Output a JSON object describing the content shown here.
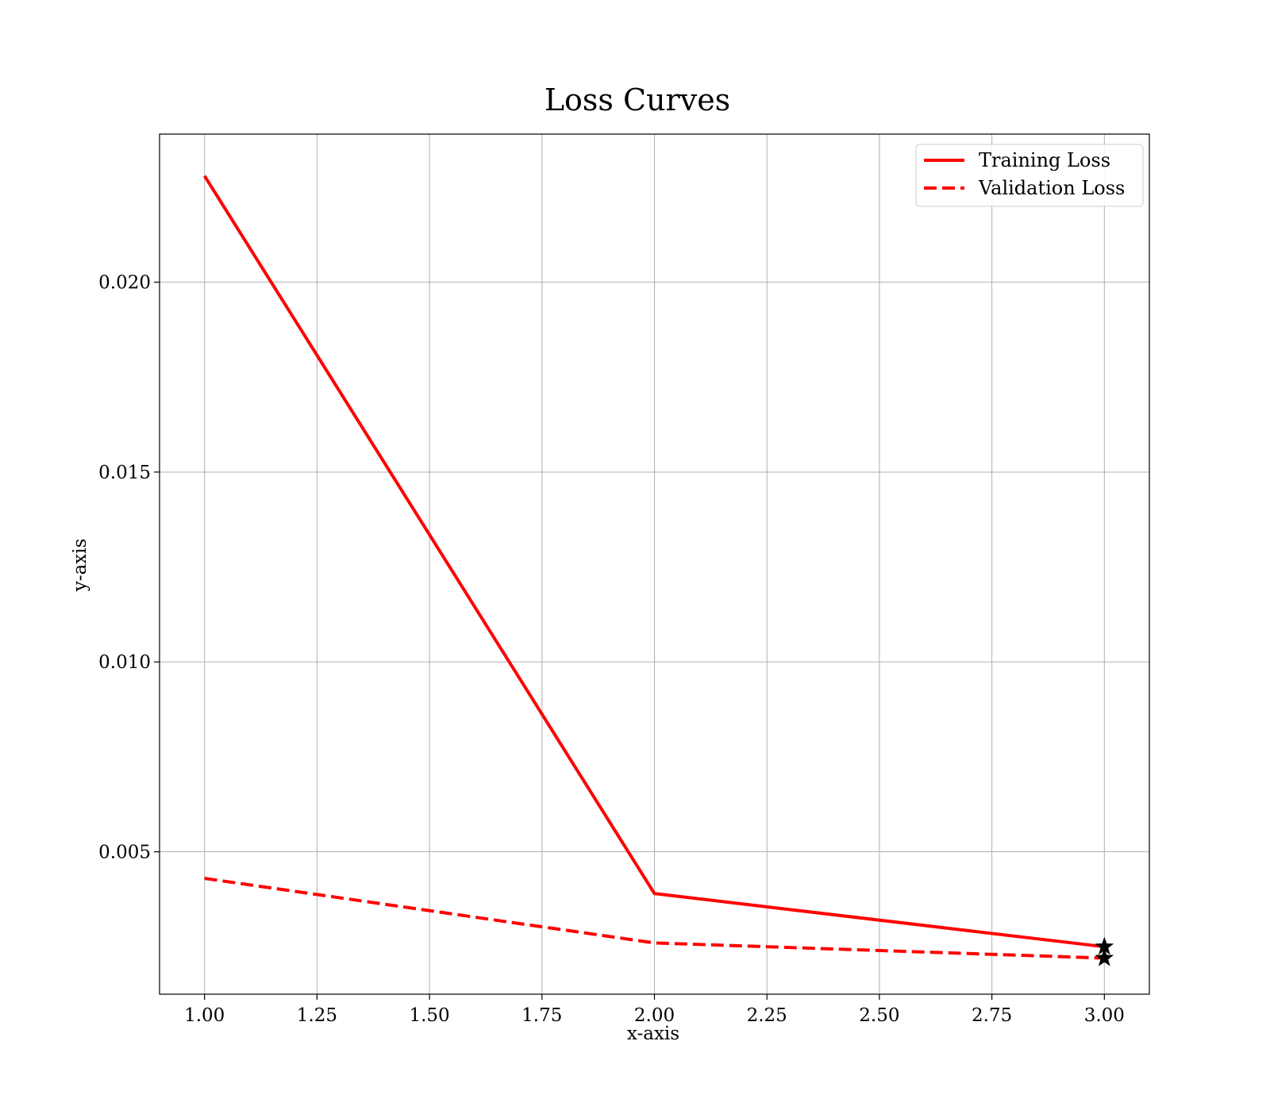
{
  "chart_data": {
    "type": "line",
    "title": "Loss Curves",
    "xlabel": "x-axis",
    "ylabel": "y-axis",
    "xlim": [
      0.9,
      3.1
    ],
    "ylim": [
      0.00125,
      0.0239
    ],
    "xticks": [
      1.0,
      1.25,
      1.5,
      1.75,
      2.0,
      2.25,
      2.5,
      2.75,
      3.0
    ],
    "xtick_labels": [
      "1.00",
      "1.25",
      "1.50",
      "1.75",
      "2.00",
      "2.25",
      "2.50",
      "2.75",
      "3.00"
    ],
    "yticks": [
      0.005,
      0.01,
      0.015,
      0.02
    ],
    "ytick_labels": [
      "0.005",
      "0.010",
      "0.015",
      "0.020"
    ],
    "grid": true,
    "legend_position": "top-right",
    "x": [
      1,
      2,
      3
    ],
    "series": [
      {
        "name": "Training Loss",
        "values": [
          0.0228,
          0.0039,
          0.0025
        ],
        "color": "#ff0000",
        "style": "solid",
        "final_marker": "star"
      },
      {
        "name": "Validation Loss",
        "values": [
          0.0043,
          0.0026,
          0.0022
        ],
        "color": "#ff0000",
        "style": "dashed",
        "final_marker": "star"
      }
    ]
  }
}
